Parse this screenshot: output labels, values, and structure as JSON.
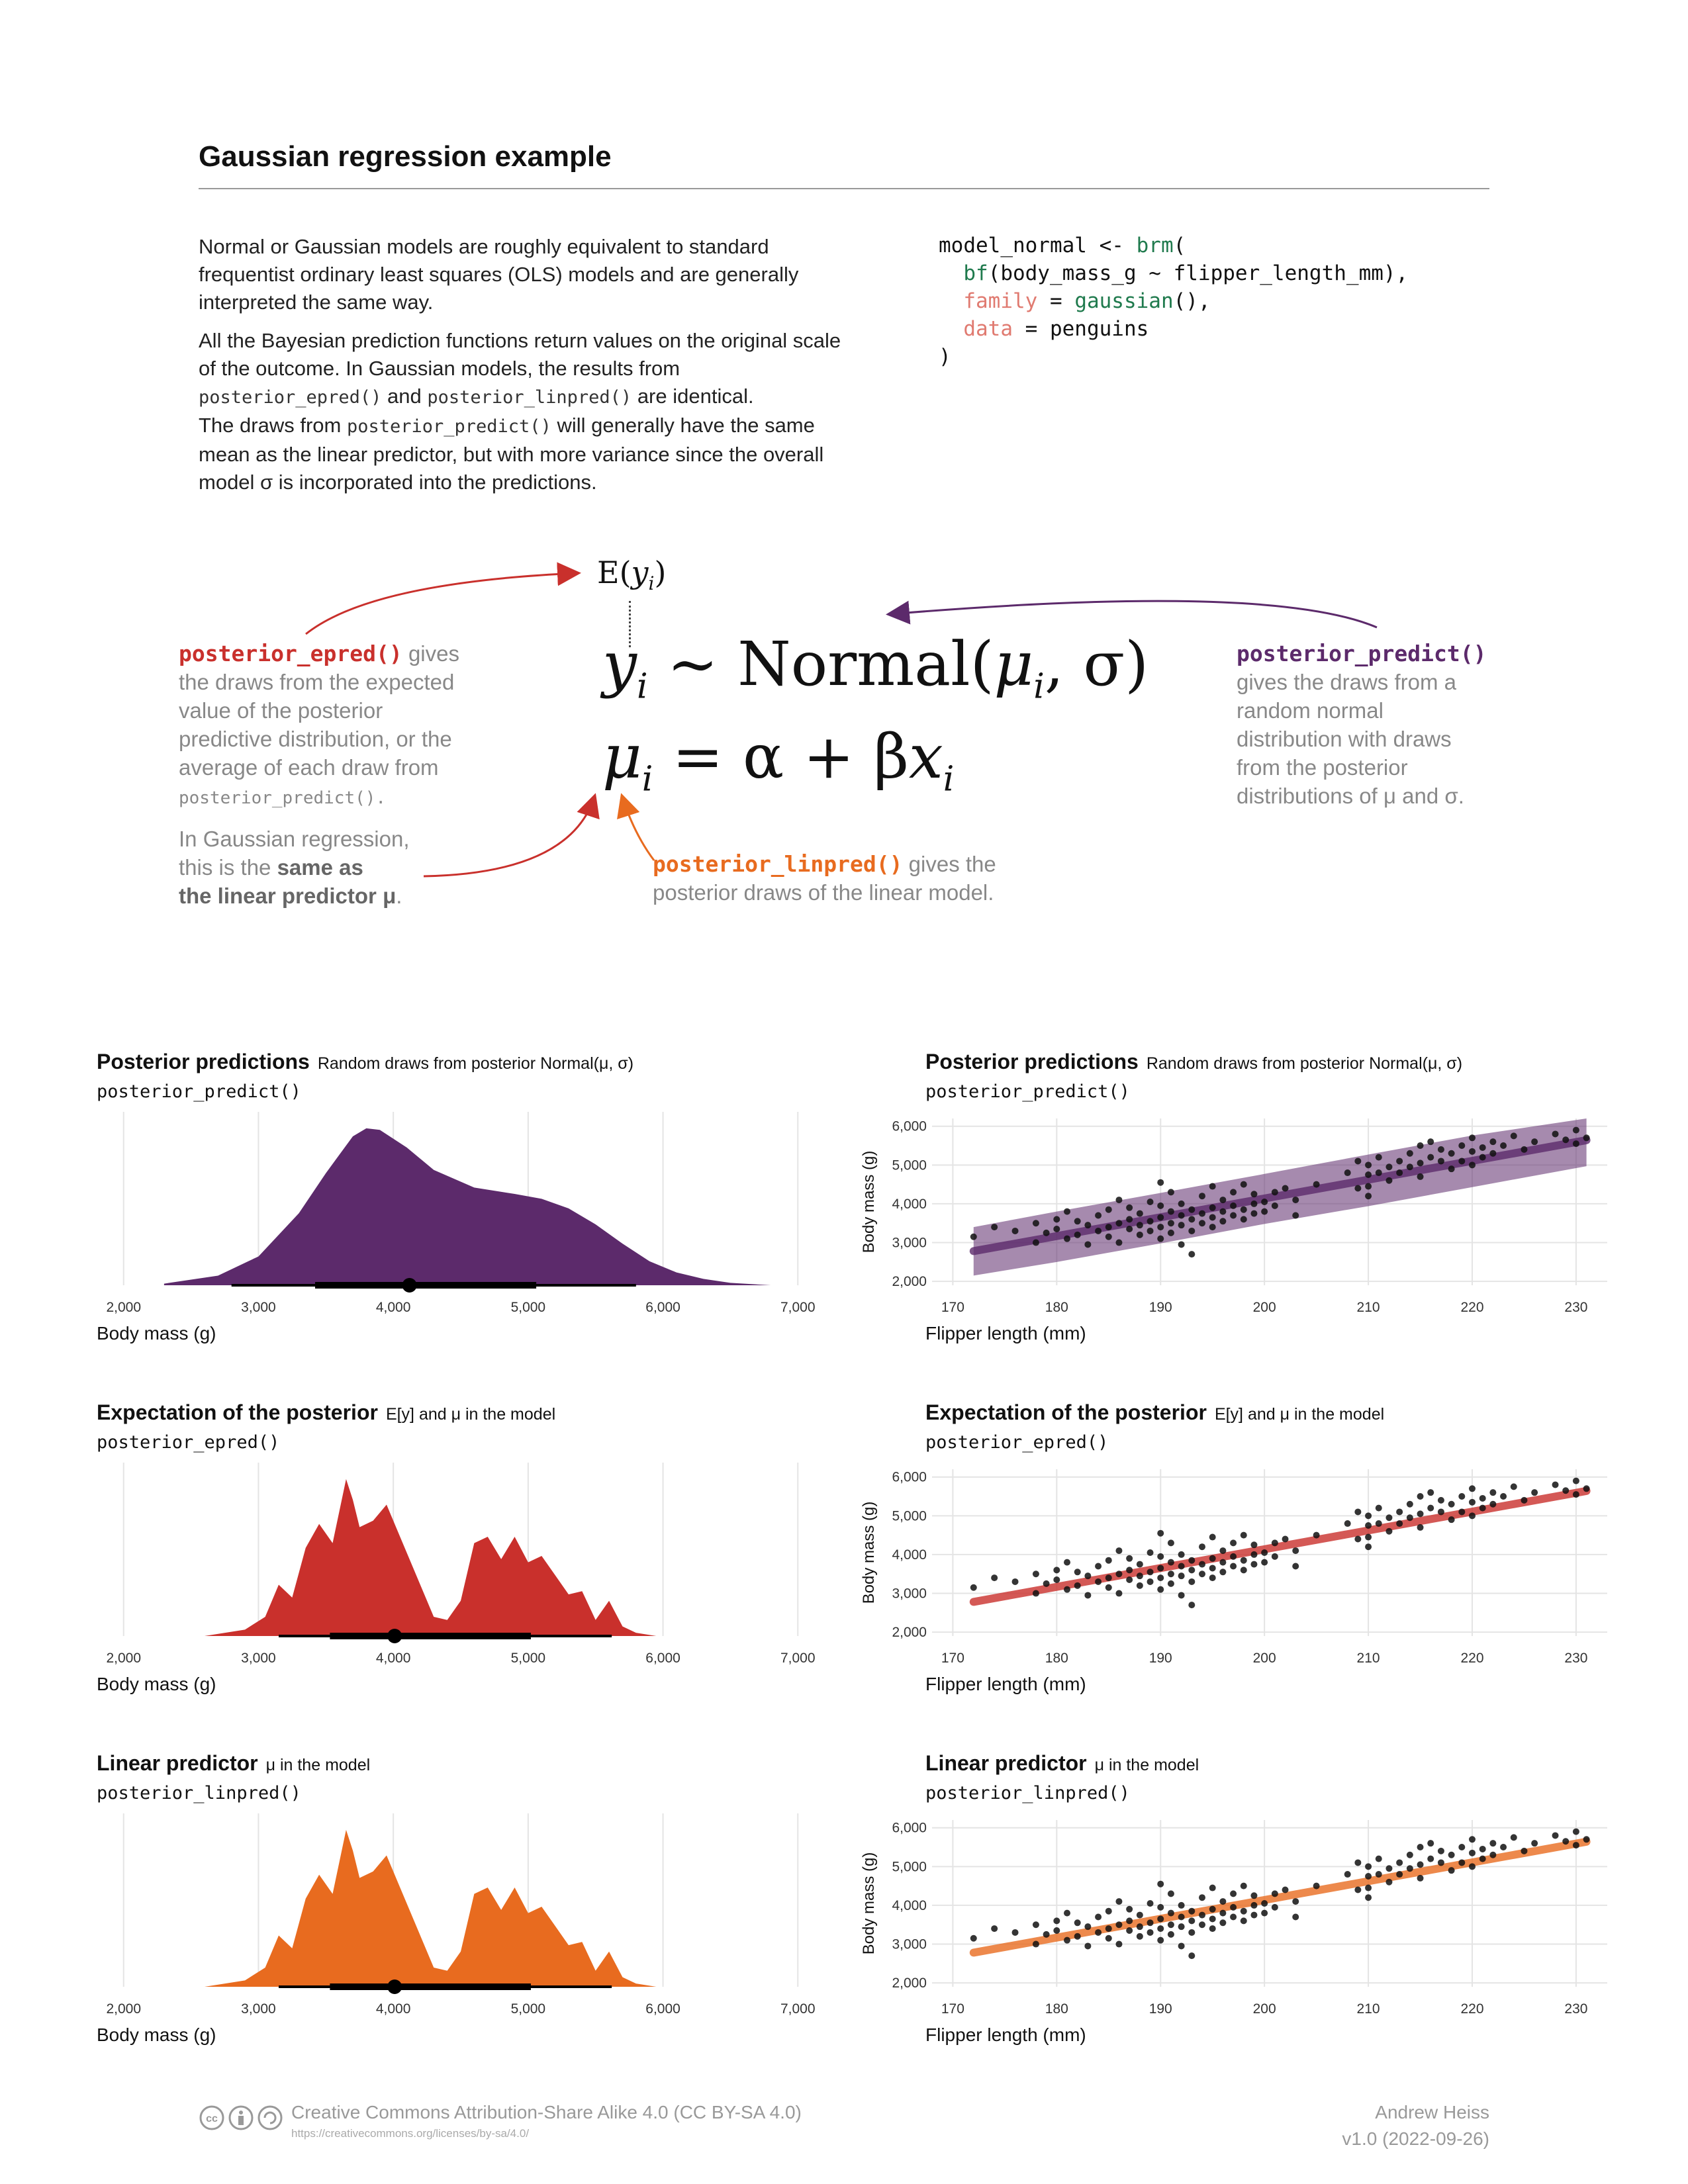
{
  "header": {
    "title": "Gaussian regression example"
  },
  "intro": {
    "p1": "Normal or Gaussian models are roughly equivalent to standard frequentist ordinary least squares (OLS) models and are generally interpreted the same way.",
    "p2_a": "All the Bayesian prediction functions return values on the original scale of the outcome. In Gaussian models, the results from",
    "p2_code1": "posterior_epred()",
    "p2_b": "and",
    "p2_code2": "posterior_linpred()",
    "p2_c": "are identical.",
    "p2_d": "The draws from",
    "p2_code3": "posterior_predict()",
    "p2_e": "will generally have the same mean as the linear predictor, but with more variance since the overall model σ is incorporated into the predictions."
  },
  "code": {
    "l1a": "model_normal <- ",
    "l1b": "brm",
    "l1c": "(",
    "l2a": "  ",
    "l2b": "bf",
    "l2c": "(body_mass_g ~ flipper_length_mm),",
    "l3a": "  ",
    "l3b": "family",
    "l3c": " = ",
    "l3d": "gaussian",
    "l3e": "(),",
    "l4a": "  ",
    "l4b": "data",
    "l4c": " = penguins",
    "l5": ")"
  },
  "equation": {
    "ey_E": "E(",
    "ey_y": "y",
    "ey_i": "i",
    "ey_close": ")",
    "l1_y": "y",
    "l1_i": "i",
    "l1_tilde": " ∼ Normal(",
    "l1_mu": "μ",
    "l1_i2": "i",
    "l1_rest": ", σ)",
    "l2_mu": "μ",
    "l2_i": "i",
    "l2_eq": " = α + β",
    "l2_x": "x",
    "l2_i2": "i"
  },
  "annotations": {
    "epred_fn": "posterior_epred()",
    "epred_l1": "gives",
    "epred_l2": "the draws from the expected",
    "epred_l3": "value of the posterior",
    "epred_l4": "predictive distribution, or the",
    "epred_l5": "average of each draw from",
    "epred_l6": "posterior_predict().",
    "gauss_l1": "In Gaussian regression,",
    "gauss_l2a": "this is the ",
    "gauss_l2b": "same as",
    "gauss_l3a": "the linear predictor μ",
    "gauss_l3b": ".",
    "predict_fn": "posterior_predict()",
    "predict_l1": "gives the draws from a",
    "predict_l2": "random normal",
    "predict_l3": "distribution with draws",
    "predict_l4": "from the posterior",
    "predict_l5": "distributions of μ and σ.",
    "linpred_fn": "posterior_linpred()",
    "linpred_l1": "gives the",
    "linpred_l2": "posterior draws of the linear model."
  },
  "panels": {
    "predict": {
      "title": "Posterior predictions",
      "subtitle": "Random draws from posterior Normal(μ, σ)",
      "fn": "posterior_predict()"
    },
    "epred": {
      "title": "Expectation of the posterior",
      "subtitle": "E[y] and μ in the model",
      "fn": "posterior_epred()"
    },
    "linpred": {
      "title": "Linear predictor",
      "subtitle": "μ in the model",
      "fn": "posterior_linpred()"
    }
  },
  "colors": {
    "predict": "#5c2a6b",
    "epred": "#c9302c",
    "linpred": "#e86b1f"
  },
  "chart_data": [
    {
      "type": "area",
      "id": "density-predict",
      "xlabel": "Body mass (g)",
      "xlim": [
        1800,
        7200
      ],
      "xticks": [
        2000,
        3000,
        4000,
        5000,
        6000,
        7000
      ],
      "tick_labels": [
        "2,000",
        "3,000",
        "4,000",
        "5,000",
        "6,000",
        "7,000"
      ],
      "x": [
        2300,
        2700,
        3000,
        3300,
        3500,
        3700,
        3800,
        3900,
        4100,
        4300,
        4600,
        4900,
        5100,
        5300,
        5500,
        5700,
        5900,
        6100,
        6300,
        6500,
        6800
      ],
      "density": [
        0.01,
        0.06,
        0.18,
        0.45,
        0.7,
        0.93,
        0.98,
        0.97,
        0.86,
        0.72,
        0.61,
        0.57,
        0.54,
        0.48,
        0.38,
        0.26,
        0.15,
        0.08,
        0.04,
        0.015,
        0.0
      ],
      "point": 4120,
      "interval_66": [
        3420,
        5060
      ],
      "interval_95": [
        2800,
        5800
      ]
    },
    {
      "type": "area",
      "id": "density-epred",
      "xlabel": "Body mass (g)",
      "xlim": [
        1800,
        7200
      ],
      "xticks": [
        2000,
        3000,
        4000,
        5000,
        6000,
        7000
      ],
      "tick_labels": [
        "2,000",
        "3,000",
        "4,000",
        "5,000",
        "6,000",
        "7,000"
      ],
      "x": [
        2600,
        2900,
        3050,
        3150,
        3250,
        3350,
        3450,
        3550,
        3650,
        3700,
        3750,
        3850,
        3950,
        4050,
        4150,
        4300,
        4400,
        4500,
        4600,
        4700,
        4800,
        4900,
        5000,
        5100,
        5200,
        5300,
        5400,
        5500,
        5600,
        5700,
        5800,
        5950
      ],
      "density": [
        0.0,
        0.04,
        0.12,
        0.32,
        0.24,
        0.55,
        0.7,
        0.58,
        0.98,
        0.85,
        0.68,
        0.72,
        0.82,
        0.62,
        0.42,
        0.12,
        0.1,
        0.22,
        0.58,
        0.62,
        0.48,
        0.62,
        0.46,
        0.5,
        0.38,
        0.26,
        0.28,
        0.1,
        0.22,
        0.06,
        0.02,
        0.0
      ],
      "point": 4010,
      "interval_66": [
        3530,
        5020
      ],
      "interval_95": [
        3150,
        5620
      ]
    },
    {
      "type": "area",
      "id": "density-linpred",
      "xlabel": "Body mass (g)",
      "xlim": [
        1800,
        7200
      ],
      "xticks": [
        2000,
        3000,
        4000,
        5000,
        6000,
        7000
      ],
      "tick_labels": [
        "2,000",
        "3,000",
        "4,000",
        "5,000",
        "6,000",
        "7,000"
      ],
      "x": [
        2600,
        2900,
        3050,
        3150,
        3250,
        3350,
        3450,
        3550,
        3650,
        3700,
        3750,
        3850,
        3950,
        4050,
        4150,
        4300,
        4400,
        4500,
        4600,
        4700,
        4800,
        4900,
        5000,
        5100,
        5200,
        5300,
        5400,
        5500,
        5600,
        5700,
        5800,
        5950
      ],
      "density": [
        0.0,
        0.04,
        0.12,
        0.32,
        0.24,
        0.55,
        0.7,
        0.58,
        0.98,
        0.85,
        0.68,
        0.72,
        0.82,
        0.62,
        0.42,
        0.12,
        0.1,
        0.22,
        0.58,
        0.62,
        0.48,
        0.62,
        0.46,
        0.5,
        0.38,
        0.26,
        0.28,
        0.1,
        0.22,
        0.06,
        0.02,
        0.0
      ],
      "point": 4010,
      "interval_66": [
        3530,
        5020
      ],
      "interval_95": [
        3150,
        5620
      ]
    },
    {
      "type": "scatter",
      "id": "scatter-predict",
      "xlabel": "Flipper length (mm)",
      "ylabel": "Body mass (g)",
      "xlim": [
        168,
        233
      ],
      "ylim": [
        1900,
        6200
      ],
      "xticks": [
        170,
        180,
        190,
        200,
        210,
        220,
        230
      ],
      "yticks": [
        2000,
        3000,
        4000,
        5000,
        6000
      ],
      "ytick_labels": [
        "2,000",
        "3,000",
        "4,000",
        "5,000",
        "6,000"
      ],
      "line": {
        "x": [
          172,
          231
        ],
        "y": [
          2780,
          5640
        ]
      },
      "band": {
        "x": [
          172,
          180,
          190,
          200,
          210,
          220,
          231
        ],
        "lower": [
          2150,
          2500,
          2980,
          3480,
          3940,
          4430,
          4970
        ],
        "upper": [
          3400,
          3800,
          4280,
          4770,
          5270,
          5760,
          6200
        ]
      }
    },
    {
      "type": "scatter",
      "id": "scatter-epred",
      "xlabel": "Flipper length (mm)",
      "ylabel": "Body mass (g)",
      "xlim": [
        168,
        233
      ],
      "ylim": [
        1900,
        6200
      ],
      "xticks": [
        170,
        180,
        190,
        200,
        210,
        220,
        230
      ],
      "yticks": [
        2000,
        3000,
        4000,
        5000,
        6000
      ],
      "ytick_labels": [
        "2,000",
        "3,000",
        "4,000",
        "5,000",
        "6,000"
      ],
      "line": {
        "x": [
          172,
          231
        ],
        "y": [
          2780,
          5640
        ]
      }
    },
    {
      "type": "scatter",
      "id": "scatter-linpred",
      "xlabel": "Flipper length (mm)",
      "ylabel": "Body mass (g)",
      "xlim": [
        168,
        233
      ],
      "ylim": [
        1900,
        6200
      ],
      "xticks": [
        170,
        180,
        190,
        200,
        210,
        220,
        230
      ],
      "yticks": [
        2000,
        3000,
        4000,
        5000,
        6000
      ],
      "ytick_labels": [
        "2,000",
        "3,000",
        "4,000",
        "5,000",
        "6,000"
      ],
      "line": {
        "x": [
          172,
          231
        ],
        "y": [
          2780,
          5640
        ]
      }
    }
  ],
  "points": [
    [
      172,
      3150
    ],
    [
      174,
      3400
    ],
    [
      176,
      3300
    ],
    [
      178,
      3000
    ],
    [
      178,
      3500
    ],
    [
      179,
      3250
    ],
    [
      180,
      3600
    ],
    [
      180,
      3350
    ],
    [
      181,
      3100
    ],
    [
      181,
      3800
    ],
    [
      182,
      3200
    ],
    [
      182,
      3550
    ],
    [
      183,
      3450
    ],
    [
      183,
      2950
    ],
    [
      184,
      3700
    ],
    [
      184,
      3300
    ],
    [
      185,
      3400
    ],
    [
      185,
      3850
    ],
    [
      185,
      3150
    ],
    [
      186,
      3500
    ],
    [
      186,
      4100
    ],
    [
      186,
      3000
    ],
    [
      187,
      3600
    ],
    [
      187,
      3350
    ],
    [
      187,
      3900
    ],
    [
      188,
      3450
    ],
    [
      188,
      3200
    ],
    [
      188,
      3750
    ],
    [
      189,
      3550
    ],
    [
      189,
      3300
    ],
    [
      189,
      4050
    ],
    [
      190,
      3650
    ],
    [
      190,
      3400
    ],
    [
      190,
      3950
    ],
    [
      190,
      3100
    ],
    [
      190,
      4550
    ],
    [
      191,
      3500
    ],
    [
      191,
      3800
    ],
    [
      191,
      3250
    ],
    [
      191,
      4300
    ],
    [
      192,
      3700
    ],
    [
      192,
      3450
    ],
    [
      192,
      2950
    ],
    [
      192,
      4000
    ],
    [
      193,
      3600
    ],
    [
      193,
      3850
    ],
    [
      193,
      3300
    ],
    [
      193,
      2700
    ],
    [
      194,
      3750
    ],
    [
      194,
      4200
    ],
    [
      194,
      3500
    ],
    [
      195,
      3650
    ],
    [
      195,
      3900
    ],
    [
      195,
      4450
    ],
    [
      195,
      3400
    ],
    [
      196,
      3800
    ],
    [
      196,
      4100
    ],
    [
      196,
      3550
    ],
    [
      197,
      3700
    ],
    [
      197,
      4300
    ],
    [
      197,
      3950
    ],
    [
      198,
      3850
    ],
    [
      198,
      4500
    ],
    [
      198,
      3600
    ],
    [
      199,
      4000
    ],
    [
      199,
      3750
    ],
    [
      199,
      4250
    ],
    [
      200,
      4050
    ],
    [
      200,
      3800
    ],
    [
      201,
      4300
    ],
    [
      201,
      3950
    ],
    [
      202,
      4400
    ],
    [
      203,
      4100
    ],
    [
      203,
      3700
    ],
    [
      205,
      4500
    ],
    [
      208,
      4800
    ],
    [
      209,
      4400
    ],
    [
      209,
      5100
    ],
    [
      210,
      4750
    ],
    [
      210,
      4200
    ],
    [
      210,
      5000
    ],
    [
      210,
      4450
    ],
    [
      211,
      4800
    ],
    [
      211,
      5200
    ],
    [
      212,
      4950
    ],
    [
      212,
      4600
    ],
    [
      213,
      5100
    ],
    [
      213,
      4800
    ],
    [
      214,
      5300
    ],
    [
      214,
      4950
    ],
    [
      215,
      5050
    ],
    [
      215,
      5500
    ],
    [
      215,
      4700
    ],
    [
      216,
      5200
    ],
    [
      216,
      5600
    ],
    [
      217,
      5100
    ],
    [
      217,
      5400
    ],
    [
      218,
      5300
    ],
    [
      218,
      4900
    ],
    [
      219,
      5500
    ],
    [
      219,
      5100
    ],
    [
      220,
      5350
    ],
    [
      220,
      5700
    ],
    [
      220,
      5000
    ],
    [
      221,
      5450
    ],
    [
      221,
      5200
    ],
    [
      222,
      5600
    ],
    [
      222,
      5300
    ],
    [
      223,
      5500
    ],
    [
      224,
      5750
    ],
    [
      225,
      5400
    ],
    [
      226,
      5600
    ],
    [
      228,
      5800
    ],
    [
      229,
      5650
    ],
    [
      230,
      5900
    ],
    [
      230,
      5550
    ],
    [
      231,
      5700
    ]
  ],
  "footer": {
    "license": "Creative Commons Attribution-Share Alike 4.0 (CC BY-SA 4.0)",
    "url": "https://creativecommons.org/licenses/by-sa/4.0/",
    "author": "Andrew Heiss",
    "version": "v1.0 (2022-09-26)"
  }
}
